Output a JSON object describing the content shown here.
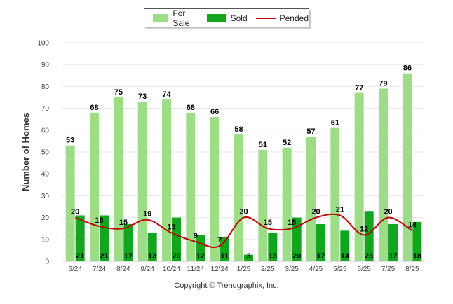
{
  "legend": {
    "items": [
      {
        "label": "For Sale",
        "color": "#9ddd88",
        "kind": "bar"
      },
      {
        "label": "Sold",
        "color": "#14a51e",
        "kind": "bar"
      },
      {
        "label": "Pended",
        "color": "#c00000",
        "kind": "line"
      }
    ]
  },
  "footer": {
    "copyright": "Copyright © Trendgraphix, Inc."
  },
  "chart_data": {
    "type": "bar",
    "categories": [
      "6/24",
      "7/24",
      "8/24",
      "9/24",
      "10/24",
      "11/24",
      "12/24",
      "1/25",
      "2/25",
      "3/25",
      "4/25",
      "5/25",
      "6/25",
      "7/25",
      "8/25"
    ],
    "series": [
      {
        "name": "For Sale",
        "type": "bar",
        "color": "#9ddd88",
        "values": [
          53,
          68,
          75,
          73,
          74,
          68,
          66,
          58,
          51,
          52,
          57,
          61,
          77,
          79,
          86
        ]
      },
      {
        "name": "Sold",
        "type": "bar",
        "color": "#14a51e",
        "values": [
          21,
          21,
          17,
          13,
          20,
          12,
          11,
          3,
          13,
          20,
          17,
          14,
          23,
          17,
          18
        ]
      },
      {
        "name": "Pended",
        "type": "line",
        "color": "#c00000",
        "values": [
          20,
          16,
          15,
          19,
          13,
          9,
          7,
          20,
          15,
          15,
          20,
          21,
          12,
          20,
          14
        ]
      }
    ],
    "ylabel": "Number of Homes",
    "xlabel": "",
    "ylim": [
      0,
      100
    ],
    "yticks": [
      0,
      10,
      20,
      30,
      40,
      50,
      60,
      70,
      80,
      90,
      100
    ],
    "grid": true,
    "legend": "top-center"
  }
}
